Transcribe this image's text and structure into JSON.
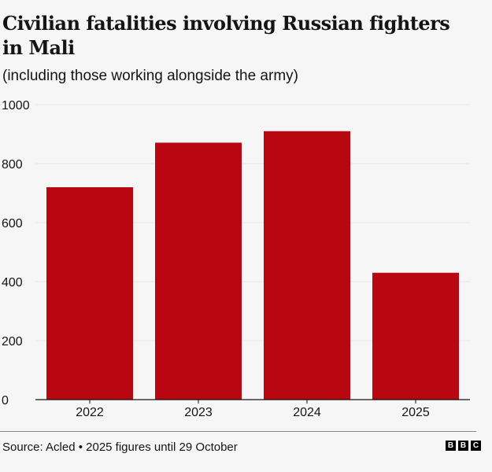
{
  "chart_data": {
    "type": "bar",
    "title": "Civilian fatalities involving Russian fighters in Mali",
    "subtitle": "(including those working alongside the army)",
    "categories": [
      "2022",
      "2023",
      "2024",
      "2025"
    ],
    "values": [
      720,
      871,
      910,
      430
    ],
    "xlabel": "",
    "ylabel": "",
    "ylim": [
      0,
      1000
    ],
    "yticks": [
      0,
      200,
      400,
      600,
      800,
      1000
    ],
    "grid": true,
    "bar_color": "#b80710"
  },
  "footer": {
    "source": "Source: Acled • 2025 figures until 29 October",
    "logo": [
      "B",
      "B",
      "C"
    ]
  }
}
